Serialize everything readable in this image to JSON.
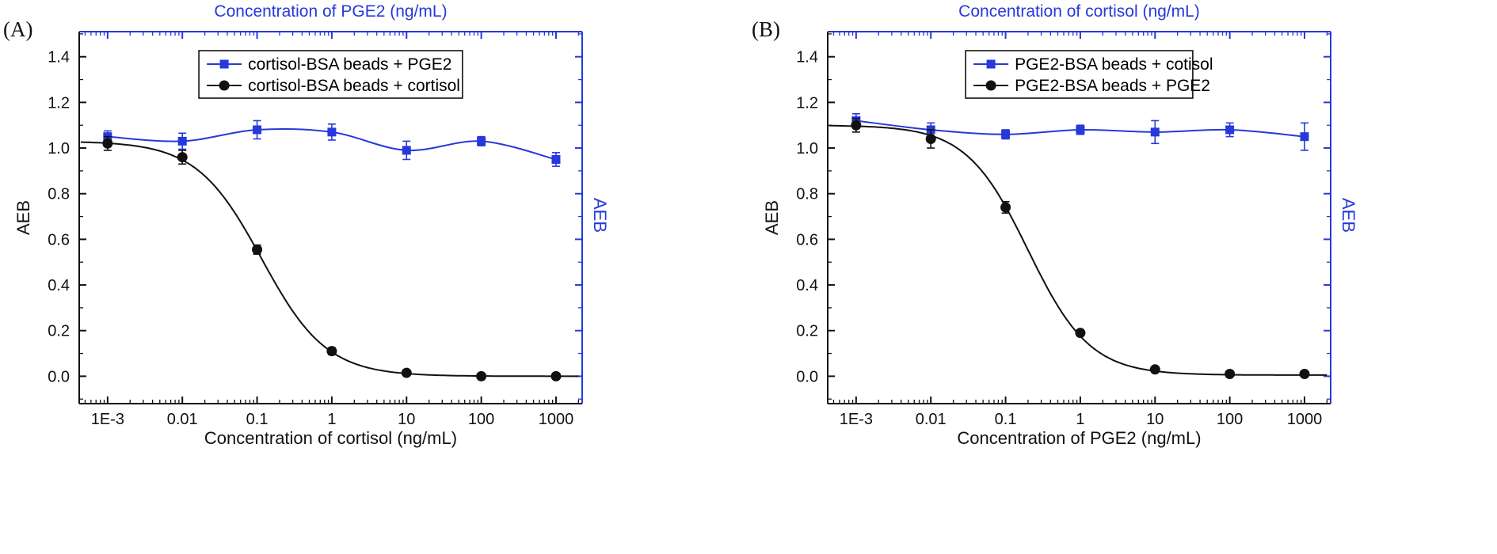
{
  "figure": {
    "background": "#ffffff",
    "accent_blue": "#2639db",
    "black": "#111111"
  },
  "chart_data": [
    {
      "type": "line",
      "panel_label": "(A)",
      "top_xlabel": "Concentration of PGE2 (ng/mL)",
      "xlabel": "Concentration of cortisol (ng/mL)",
      "ylabel": "AEB",
      "right_ylabel": "AEB",
      "x_scale": "log",
      "xlim_log": [
        -3.38,
        3.35
      ],
      "ylim": [
        -0.12,
        1.51
      ],
      "x_ticks": {
        "labels": [
          "1E-3",
          "0.01",
          "0.1",
          "1",
          "10",
          "100",
          "1000"
        ],
        "log_values": [
          -3,
          -2,
          -1,
          0,
          1,
          2,
          3
        ]
      },
      "y_ticks": [
        0.0,
        0.2,
        0.4,
        0.6,
        0.8,
        1.0,
        1.2,
        1.4
      ],
      "x_values": [
        0.001,
        0.01,
        0.1,
        1,
        10,
        100,
        1000
      ],
      "legend_position": "top-center",
      "grid": false,
      "series": [
        {
          "name": "cortisol-BSA beads + PGE2",
          "color": "#2639db",
          "marker": "square",
          "values": [
            1.05,
            1.03,
            1.08,
            1.07,
            0.99,
            1.03,
            0.95
          ],
          "errors": [
            0.025,
            0.035,
            0.04,
            0.035,
            0.04,
            0.02,
            0.03
          ],
          "fit": "spline"
        },
        {
          "name": "cortisol-BSA beads + cortisol",
          "color": "#111111",
          "marker": "circle",
          "values": [
            1.02,
            0.96,
            0.555,
            0.11,
            0.015,
            0.0,
            0.0
          ],
          "errors": [
            0.03,
            0.03,
            0.02,
            0.015,
            0.01,
            0.008,
            0.008
          ],
          "fit": "sigmoid",
          "fit_params": {
            "top": 1.03,
            "bottom": 0.0,
            "ec50": 0.115,
            "hill": 1.0
          }
        }
      ]
    },
    {
      "type": "line",
      "panel_label": "(B)",
      "top_xlabel": "Concentration of cortisol (ng/mL)",
      "xlabel": "Concentration of PGE2 (ng/mL)",
      "ylabel": "AEB",
      "right_ylabel": "AEB",
      "x_scale": "log",
      "xlim_log": [
        -3.38,
        3.35
      ],
      "ylim": [
        -0.12,
        1.51
      ],
      "x_ticks": {
        "labels": [
          "1E-3",
          "0.01",
          "0.1",
          "1",
          "10",
          "100",
          "1000"
        ],
        "log_values": [
          -3,
          -2,
          -1,
          0,
          1,
          2,
          3
        ]
      },
      "y_ticks": [
        0.0,
        0.2,
        0.4,
        0.6,
        0.8,
        1.0,
        1.2,
        1.4
      ],
      "x_values": [
        0.001,
        0.01,
        0.1,
        1,
        10,
        100,
        1000
      ],
      "legend_position": "top-center",
      "grid": false,
      "series": [
        {
          "name": "PGE2-BSA beads + cotisol",
          "color": "#2639db",
          "marker": "square",
          "values": [
            1.12,
            1.08,
            1.06,
            1.08,
            1.07,
            1.08,
            1.05
          ],
          "errors": [
            0.03,
            0.03,
            0.02,
            0.02,
            0.05,
            0.03,
            0.06
          ],
          "fit": "spline"
        },
        {
          "name": "PGE2-BSA beads + PGE2",
          "color": "#111111",
          "marker": "circle",
          "values": [
            1.1,
            1.04,
            0.74,
            0.19,
            0.03,
            0.01,
            0.01
          ],
          "errors": [
            0.03,
            0.04,
            0.025,
            0.012,
            0.008,
            0.006,
            0.006
          ],
          "fit": "sigmoid",
          "fit_params": {
            "top": 1.1,
            "bottom": 0.005,
            "ec50": 0.2,
            "hill": 1.05
          }
        }
      ]
    }
  ]
}
